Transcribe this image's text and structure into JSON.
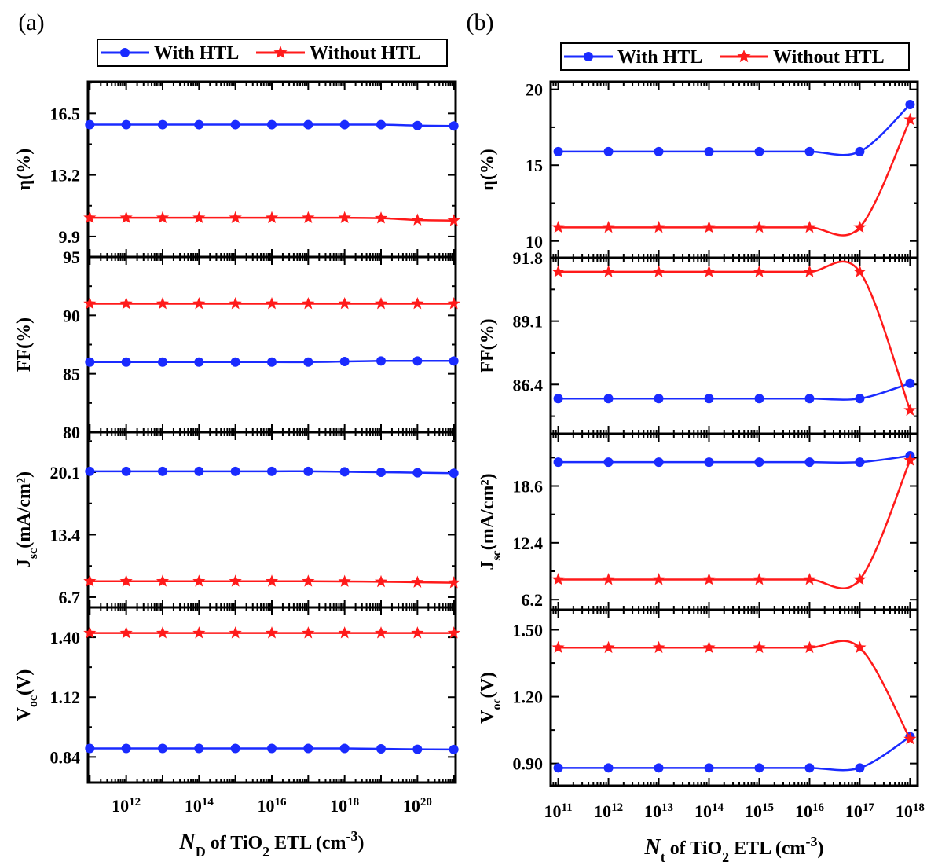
{
  "chart_data": [
    {
      "type": "line",
      "panel_label": "(a)",
      "legend": [
        "With HTL",
        "Without HTL"
      ],
      "legend_placement": "top",
      "xlabel": {
        "italic": "N",
        "sub": "D",
        "rest": " of TiO",
        "sub2": "2",
        "rest2": " ETL (cm",
        "sup": "-3",
        "close": ")"
      },
      "x_scale": "log",
      "x_exponents": [
        11,
        12,
        13,
        14,
        15,
        16,
        17,
        18,
        19,
        20,
        21
      ],
      "x_ticks": [
        {
          "base": "10",
          "exp": "12"
        },
        {
          "base": "10",
          "exp": "14"
        },
        {
          "base": "10",
          "exp": "16"
        },
        {
          "base": "10",
          "exp": "18"
        },
        {
          "base": "10",
          "exp": "20"
        }
      ],
      "x_tick_exponents": [
        12,
        14,
        16,
        18,
        20
      ],
      "x_range": [
        10.95,
        21.05
      ],
      "grid": false,
      "subplots": [
        {
          "ylabel": {
            "main": "η(%)",
            "sub": "",
            "rest": ""
          },
          "ylim": [
            8.8,
            18.2
          ],
          "yticks": [
            "16.5",
            "13.2",
            "9.9"
          ],
          "ytick_values": [
            16.5,
            13.2,
            9.9
          ],
          "series": [
            {
              "name": "With HTL",
              "color": "#1a2bff",
              "marker": "circle",
              "values": [
                15.9,
                15.9,
                15.9,
                15.9,
                15.9,
                15.9,
                15.9,
                15.9,
                15.9,
                15.85,
                15.83
              ]
            },
            {
              "name": "Without HTL",
              "color": "#ff1a1a",
              "marker": "star",
              "values": [
                10.9,
                10.9,
                10.9,
                10.9,
                10.9,
                10.9,
                10.9,
                10.9,
                10.88,
                10.78,
                10.75
              ]
            }
          ]
        },
        {
          "ylabel": {
            "main": "FF(%)",
            "sub": "",
            "rest": ""
          },
          "ylim": [
            80,
            95
          ],
          "yticks": [
            "95",
            "90",
            "85",
            "80"
          ],
          "ytick_values": [
            95,
            90,
            85,
            80
          ],
          "series": [
            {
              "name": "With HTL",
              "color": "#1a2bff",
              "marker": "circle",
              "values": [
                86.0,
                86.0,
                86.0,
                86.0,
                86.0,
                86.0,
                86.0,
                86.05,
                86.1,
                86.1,
                86.1
              ]
            },
            {
              "name": "Without HTL",
              "color": "#ff1a1a",
              "marker": "star",
              "values": [
                91.0,
                91.0,
                91.0,
                91.0,
                91.0,
                91.0,
                91.0,
                91.0,
                91.0,
                91.0,
                91.0
              ]
            }
          ]
        },
        {
          "ylabel": {
            "main": "J",
            "sub": "sc",
            "rest": "(mA/cm²)"
          },
          "ylim": [
            5.6,
            24.4
          ],
          "yticks": [
            "20.1",
            "13.4",
            "6.7"
          ],
          "ytick_values": [
            20.1,
            13.4,
            6.7
          ],
          "series": [
            {
              "name": "With HTL",
              "color": "#1a2bff",
              "marker": "circle",
              "values": [
                20.2,
                20.2,
                20.2,
                20.2,
                20.2,
                20.2,
                20.2,
                20.15,
                20.1,
                20.05,
                20.0
              ]
            },
            {
              "name": "Without HTL",
              "color": "#ff1a1a",
              "marker": "star",
              "values": [
                8.4,
                8.4,
                8.4,
                8.4,
                8.4,
                8.4,
                8.4,
                8.38,
                8.35,
                8.3,
                8.25
              ]
            }
          ]
        },
        {
          "ylabel": {
            "main": "V",
            "sub": "oc",
            "rest": "(V)"
          },
          "ylim": [
            0.72,
            1.54
          ],
          "yticks": [
            "1.40",
            "1.12",
            "0.84"
          ],
          "ytick_values": [
            1.4,
            1.12,
            0.84
          ],
          "series": [
            {
              "name": "With HTL",
              "color": "#1a2bff",
              "marker": "circle",
              "values": [
                0.88,
                0.88,
                0.88,
                0.88,
                0.88,
                0.88,
                0.88,
                0.88,
                0.878,
                0.876,
                0.875
              ]
            },
            {
              "name": "Without HTL",
              "color": "#ff1a1a",
              "marker": "star",
              "values": [
                1.42,
                1.42,
                1.42,
                1.42,
                1.42,
                1.42,
                1.42,
                1.42,
                1.42,
                1.42,
                1.42
              ]
            }
          ]
        }
      ]
    },
    {
      "type": "line",
      "panel_label": "(b)",
      "legend": [
        "With HTL",
        "Without HTL"
      ],
      "legend_placement": "top",
      "xlabel": {
        "italic": "N",
        "sub": "t",
        "rest": " of TiO",
        "sub2": "2",
        "rest2": " ETL (cm",
        "sup": "-3",
        "close": ")"
      },
      "x_scale": "log",
      "x_exponents": [
        11,
        12,
        13,
        14,
        15,
        16,
        17,
        18
      ],
      "x_ticks": [
        {
          "base": "10",
          "exp": "11"
        },
        {
          "base": "10",
          "exp": "12"
        },
        {
          "base": "10",
          "exp": "13"
        },
        {
          "base": "10",
          "exp": "14"
        },
        {
          "base": "10",
          "exp": "15"
        },
        {
          "base": "10",
          "exp": "16"
        },
        {
          "base": "10",
          "exp": "17"
        },
        {
          "base": "10",
          "exp": "18"
        }
      ],
      "x_tick_exponents": [
        11,
        12,
        13,
        14,
        15,
        16,
        17,
        18
      ],
      "x_range": [
        10.85,
        18.15
      ],
      "grid": false,
      "subplots": [
        {
          "ylabel": {
            "main": "η(%)",
            "sub": "",
            "rest": ""
          },
          "ylim": [
            8.9,
            20.5
          ],
          "yticks": [
            "20",
            "15",
            "10"
          ],
          "ytick_values": [
            20,
            15,
            10
          ],
          "series": [
            {
              "name": "With HTL",
              "color": "#1a2bff",
              "marker": "circle",
              "values": [
                15.9,
                15.9,
                15.9,
                15.9,
                15.9,
                15.9,
                15.9,
                19.0
              ]
            },
            {
              "name": "Without HTL",
              "color": "#ff1a1a",
              "marker": "star",
              "values": [
                10.9,
                10.9,
                10.9,
                10.9,
                10.9,
                10.9,
                10.9,
                18.0
              ]
            }
          ]
        },
        {
          "ylabel": {
            "main": "FF(%)",
            "sub": "",
            "rest": ""
          },
          "ylim": [
            84.3,
            91.8
          ],
          "yticks": [
            "91.8",
            "89.1",
            "86.4"
          ],
          "ytick_values": [
            91.8,
            89.1,
            86.4
          ],
          "series": [
            {
              "name": "With HTL",
              "color": "#1a2bff",
              "marker": "circle",
              "values": [
                85.8,
                85.8,
                85.8,
                85.8,
                85.8,
                85.8,
                85.8,
                86.45
              ]
            },
            {
              "name": "Without HTL",
              "color": "#ff1a1a",
              "marker": "star",
              "values": [
                91.2,
                91.2,
                91.2,
                91.2,
                91.2,
                91.2,
                91.2,
                85.3
              ]
            }
          ]
        },
        {
          "ylabel": {
            "main": "J",
            "sub": "sc",
            "rest": "(mA/cm²)"
          },
          "ylim": [
            5.1,
            24.3
          ],
          "yticks": [
            "18.6",
            "12.4",
            "6.2"
          ],
          "ytick_values": [
            18.6,
            12.4,
            6.2
          ],
          "series": [
            {
              "name": "With HTL",
              "color": "#1a2bff",
              "marker": "circle",
              "values": [
                21.2,
                21.2,
                21.2,
                21.2,
                21.2,
                21.2,
                21.2,
                21.9
              ]
            },
            {
              "name": "Without HTL",
              "color": "#ff1a1a",
              "marker": "star",
              "values": [
                8.4,
                8.4,
                8.4,
                8.4,
                8.4,
                8.4,
                8.4,
                21.4
              ]
            }
          ]
        },
        {
          "ylabel": {
            "main": "V",
            "sub": "oc",
            "rest": "(V)"
          },
          "ylim": [
            0.8,
            1.59
          ],
          "yticks": [
            "1.50",
            "1.20",
            "0.90"
          ],
          "ytick_values": [
            1.5,
            1.2,
            0.9
          ],
          "series": [
            {
              "name": "With HTL",
              "color": "#1a2bff",
              "marker": "circle",
              "values": [
                0.88,
                0.88,
                0.88,
                0.88,
                0.88,
                0.88,
                0.88,
                1.02
              ]
            },
            {
              "name": "Without HTL",
              "color": "#ff1a1a",
              "marker": "star",
              "values": [
                1.42,
                1.42,
                1.42,
                1.42,
                1.42,
                1.42,
                1.42,
                1.01
              ]
            }
          ]
        }
      ]
    }
  ]
}
